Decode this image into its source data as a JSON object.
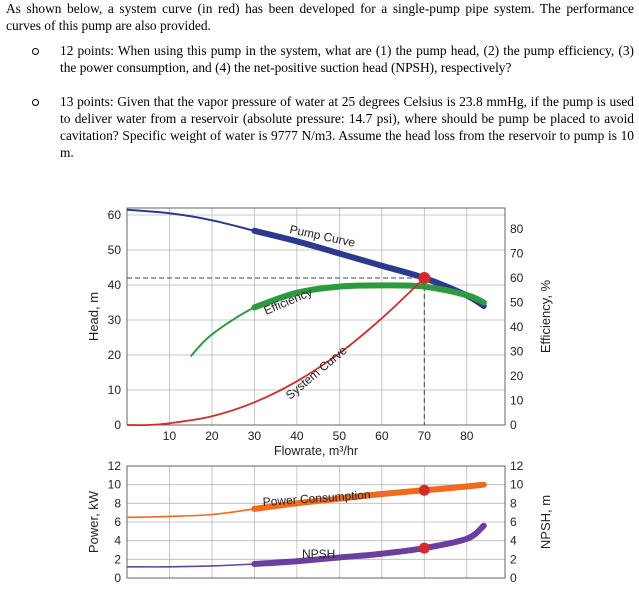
{
  "problem": {
    "intro": "As shown below, a system curve (in red) has been developed for a single-pump pipe system. The performance curves of this pump are also provided.",
    "questions": [
      "12 points: When using this pump in the system, what are (1) the pump head, (2) the pump efficiency, (3) the power consumption, and (4) the net-positive suction head (NPSH), respectively?",
      "13 points: Given that the vapor pressure of water at 25 degrees Celsius is 23.8 mmHg, if the pump is used to deliver water from a reservoir (absolute pressure: 14.7 psi), where should be pump be placed to avoid cavitation? Specific weight of water is 9777 N/m3. Assume the head loss from the reservoir to pump is 10 m."
    ]
  },
  "chart_data": [
    {
      "type": "line",
      "xlabel": "Flowrate, m³/hr",
      "ylabel": "Head, m",
      "y2label": "Efficiency, %",
      "xlim": [
        0,
        89
      ],
      "ylim": [
        0,
        62
      ],
      "y2lim": [
        0,
        88.6
      ],
      "xticks": [
        "10",
        "20",
        "30",
        "40",
        "50",
        "60",
        "70",
        "80"
      ],
      "yticks": [
        "0",
        "10",
        "20",
        "30",
        "40",
        "50",
        "60"
      ],
      "y2ticks": [
        "0",
        "10",
        "20",
        "30",
        "40",
        "50",
        "60",
        "70",
        "80"
      ],
      "grid": true,
      "series": [
        {
          "name": "Pump Curve",
          "axis": "head",
          "color": "#2b3a8f",
          "x": [
            0,
            10,
            20,
            30,
            40,
            50,
            60,
            70,
            80,
            84
          ],
          "y": [
            61.5,
            60.5,
            58.5,
            55.5,
            52.5,
            49,
            45.5,
            42,
            37,
            34
          ]
        },
        {
          "name": "Efficiency",
          "axis": "efficiency",
          "color": "#2e9a3f",
          "x": [
            15,
            20,
            30,
            40,
            50,
            60,
            70,
            80,
            84
          ],
          "y": [
            28,
            37,
            48,
            54,
            56.5,
            57,
            56.5,
            53,
            50
          ]
        },
        {
          "name": "System Curve",
          "axis": "head",
          "color": "#d42a2a",
          "x": [
            0,
            5,
            10,
            20,
            30,
            40,
            50,
            60,
            70
          ],
          "y": [
            0,
            0,
            0.5,
            2.5,
            6.5,
            12.5,
            20.5,
            30.5,
            42
          ]
        }
      ],
      "operating_point": {
        "x": 70,
        "y": 42
      },
      "dashed_reference": {
        "head": 42,
        "flow": 70
      }
    },
    {
      "type": "line",
      "xlabel": "",
      "ylabel": "Power, kW",
      "y2label": "NPSH, m",
      "xlim": [
        0,
        89
      ],
      "ylim": [
        0,
        12
      ],
      "y2lim": [
        0,
        12
      ],
      "yticks": [
        "0",
        "2",
        "4",
        "6",
        "8",
        "10",
        "12"
      ],
      "y2ticks": [
        "0",
        "2",
        "4",
        "6",
        "8",
        "10",
        "12"
      ],
      "grid": true,
      "series": [
        {
          "name": "Power Consumption",
          "axis": "power",
          "color": "#f06a1f",
          "x": [
            0,
            10,
            20,
            30,
            40,
            50,
            60,
            70,
            80,
            84
          ],
          "y": [
            6.5,
            6.6,
            6.8,
            7.4,
            8.0,
            8.5,
            9.0,
            9.4,
            9.8,
            10.0
          ]
        },
        {
          "name": "NPSH",
          "axis": "npsh",
          "color": "#6a3fa0",
          "x": [
            0,
            10,
            20,
            30,
            40,
            50,
            60,
            70,
            80,
            84
          ],
          "y": [
            1.2,
            1.2,
            1.3,
            1.5,
            1.8,
            2.2,
            2.6,
            3.2,
            4.2,
            5.6
          ]
        }
      ],
      "markers": [
        {
          "series": "Power Consumption",
          "x": 70,
          "y": 9.4
        },
        {
          "series": "NPSH",
          "x": 70,
          "y": 3.2
        }
      ]
    }
  ]
}
